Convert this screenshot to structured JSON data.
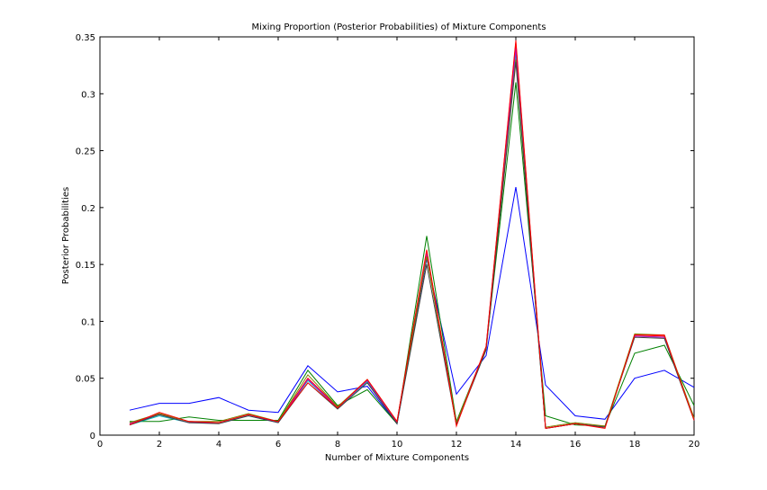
{
  "chart_data": {
    "type": "line",
    "title": "Mixing Proportion (Posterior Probabilities) of Mixture Components",
    "xlabel": "Number of Mixture Components",
    "ylabel": "Posterior Probabilities",
    "xlim": [
      0,
      20
    ],
    "ylim": [
      0,
      0.35
    ],
    "xticks": [
      0,
      2,
      4,
      6,
      8,
      10,
      12,
      14,
      16,
      18,
      20
    ],
    "yticks": [
      0,
      0.05,
      0.1,
      0.15,
      0.2,
      0.25,
      0.3,
      0.35
    ],
    "xtick_labels": [
      "0",
      "2",
      "4",
      "6",
      "8",
      "10",
      "12",
      "14",
      "16",
      "18",
      "20"
    ],
    "ytick_labels": [
      "0",
      "0.05",
      "0.1",
      "0.15",
      "0.2",
      "0.25",
      "0.3",
      "0.35"
    ],
    "grid": false,
    "x": [
      1,
      2,
      3,
      4,
      5,
      6,
      7,
      8,
      9,
      10,
      11,
      12,
      13,
      14,
      15,
      16,
      17,
      18,
      19,
      20
    ],
    "series": [
      {
        "color": "#0000ff",
        "values": [
          0.022,
          0.028,
          0.028,
          0.033,
          0.022,
          0.02,
          0.061,
          0.038,
          0.043,
          0.01,
          0.155,
          0.036,
          0.07,
          0.218,
          0.044,
          0.017,
          0.014,
          0.05,
          0.057,
          0.042
        ]
      },
      {
        "color": "#008000",
        "values": [
          0.012,
          0.012,
          0.016,
          0.013,
          0.013,
          0.013,
          0.057,
          0.026,
          0.04,
          0.01,
          0.175,
          0.012,
          0.077,
          0.31,
          0.017,
          0.009,
          0.008,
          0.072,
          0.079,
          0.026
        ]
      },
      {
        "color": "#ff0000",
        "values": [
          0.01,
          0.019,
          0.012,
          0.011,
          0.018,
          0.012,
          0.05,
          0.025,
          0.048,
          0.012,
          0.162,
          0.01,
          0.078,
          0.345,
          0.006,
          0.01,
          0.007,
          0.088,
          0.087,
          0.015
        ]
      },
      {
        "color": "#00bfbf",
        "values": [
          0.009,
          0.017,
          0.011,
          0.011,
          0.017,
          0.011,
          0.048,
          0.024,
          0.047,
          0.011,
          0.158,
          0.009,
          0.077,
          0.335,
          0.006,
          0.01,
          0.007,
          0.087,
          0.086,
          0.014
        ]
      },
      {
        "color": "#bf00bf",
        "values": [
          0.01,
          0.018,
          0.011,
          0.011,
          0.018,
          0.011,
          0.049,
          0.024,
          0.048,
          0.011,
          0.16,
          0.01,
          0.077,
          0.34,
          0.006,
          0.01,
          0.007,
          0.087,
          0.086,
          0.014
        ]
      },
      {
        "color": "#808000",
        "values": [
          0.011,
          0.019,
          0.012,
          0.012,
          0.019,
          0.012,
          0.053,
          0.025,
          0.049,
          0.012,
          0.157,
          0.011,
          0.076,
          0.33,
          0.007,
          0.011,
          0.008,
          0.089,
          0.088,
          0.015
        ]
      },
      {
        "color": "#404040",
        "values": [
          0.009,
          0.018,
          0.011,
          0.01,
          0.017,
          0.011,
          0.046,
          0.023,
          0.046,
          0.01,
          0.15,
          0.009,
          0.075,
          0.328,
          0.006,
          0.01,
          0.007,
          0.086,
          0.085,
          0.013
        ]
      },
      {
        "color": "#ff0000",
        "values": [
          0.009,
          0.02,
          0.012,
          0.011,
          0.018,
          0.012,
          0.046,
          0.024,
          0.049,
          0.012,
          0.163,
          0.008,
          0.078,
          0.347,
          0.006,
          0.01,
          0.006,
          0.088,
          0.088,
          0.013
        ]
      }
    ]
  }
}
